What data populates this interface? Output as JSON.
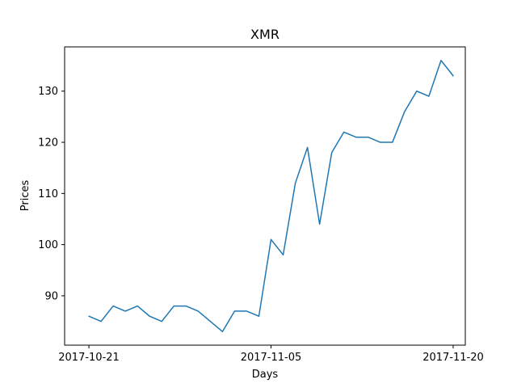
{
  "chart_data": {
    "type": "line",
    "title": "XMR",
    "xlabel": "Days",
    "ylabel": "Prices",
    "x": [
      "2017-10-21",
      "2017-10-22",
      "2017-10-23",
      "2017-10-24",
      "2017-10-25",
      "2017-10-26",
      "2017-10-27",
      "2017-10-28",
      "2017-10-29",
      "2017-10-30",
      "2017-10-31",
      "2017-11-01",
      "2017-11-02",
      "2017-11-03",
      "2017-11-04",
      "2017-11-05",
      "2017-11-06",
      "2017-11-07",
      "2017-11-08",
      "2017-11-09",
      "2017-11-10",
      "2017-11-11",
      "2017-11-12",
      "2017-11-13",
      "2017-11-14",
      "2017-11-15",
      "2017-11-16",
      "2017-11-17",
      "2017-11-18",
      "2017-11-19",
      "2017-11-20"
    ],
    "series": [
      {
        "values": [
          86,
          85,
          88,
          87,
          88,
          86,
          85,
          88,
          88,
          87,
          85,
          83,
          87,
          87,
          86,
          101,
          98,
          112,
          119,
          104,
          118,
          122,
          121,
          121,
          120,
          120,
          126,
          130,
          129,
          136,
          133
        ],
        "color": "#1f77b4"
      }
    ],
    "x_ticks": [
      "2017-10-21",
      "2017-11-05",
      "2017-11-20"
    ],
    "y_ticks": [
      90,
      100,
      110,
      120,
      130
    ],
    "xlim": [
      "2017-10-19",
      "2017-11-21"
    ],
    "ylim": [
      80.35,
      138.65
    ],
    "grid": false,
    "legend": "none"
  }
}
